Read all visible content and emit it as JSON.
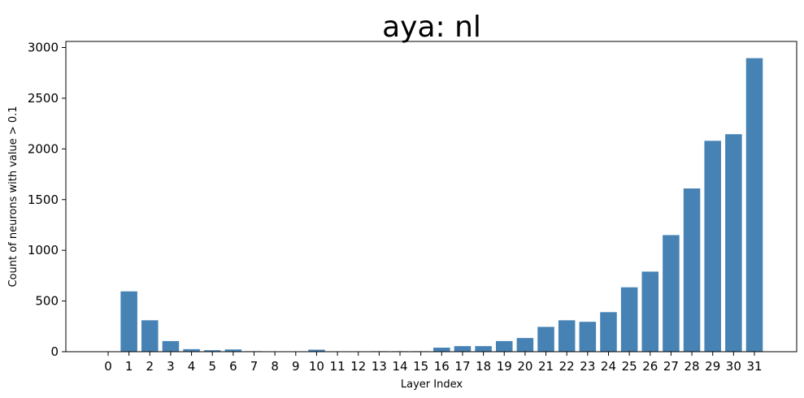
{
  "chart_data": {
    "type": "bar",
    "title": "aya: nl",
    "xlabel": "Layer Index",
    "ylabel": "Count of neurons with value > 0.1",
    "categories": [
      "0",
      "1",
      "2",
      "3",
      "4",
      "5",
      "6",
      "7",
      "8",
      "9",
      "10",
      "11",
      "12",
      "13",
      "14",
      "15",
      "16",
      "17",
      "18",
      "19",
      "20",
      "21",
      "22",
      "23",
      "24",
      "25",
      "26",
      "27",
      "28",
      "29",
      "30",
      "31"
    ],
    "values": [
      0,
      595,
      310,
      105,
      25,
      15,
      22,
      5,
      4,
      0,
      20,
      4,
      0,
      5,
      5,
      5,
      40,
      55,
      55,
      105,
      135,
      245,
      310,
      295,
      390,
      635,
      790,
      1150,
      1610,
      2080,
      2145,
      2895
    ],
    "ylim": [
      0,
      3050
    ],
    "yticks": [
      0,
      500,
      1000,
      1500,
      2000,
      2500,
      3000
    ],
    "bar_color": "#4682b4",
    "grid": false
  }
}
